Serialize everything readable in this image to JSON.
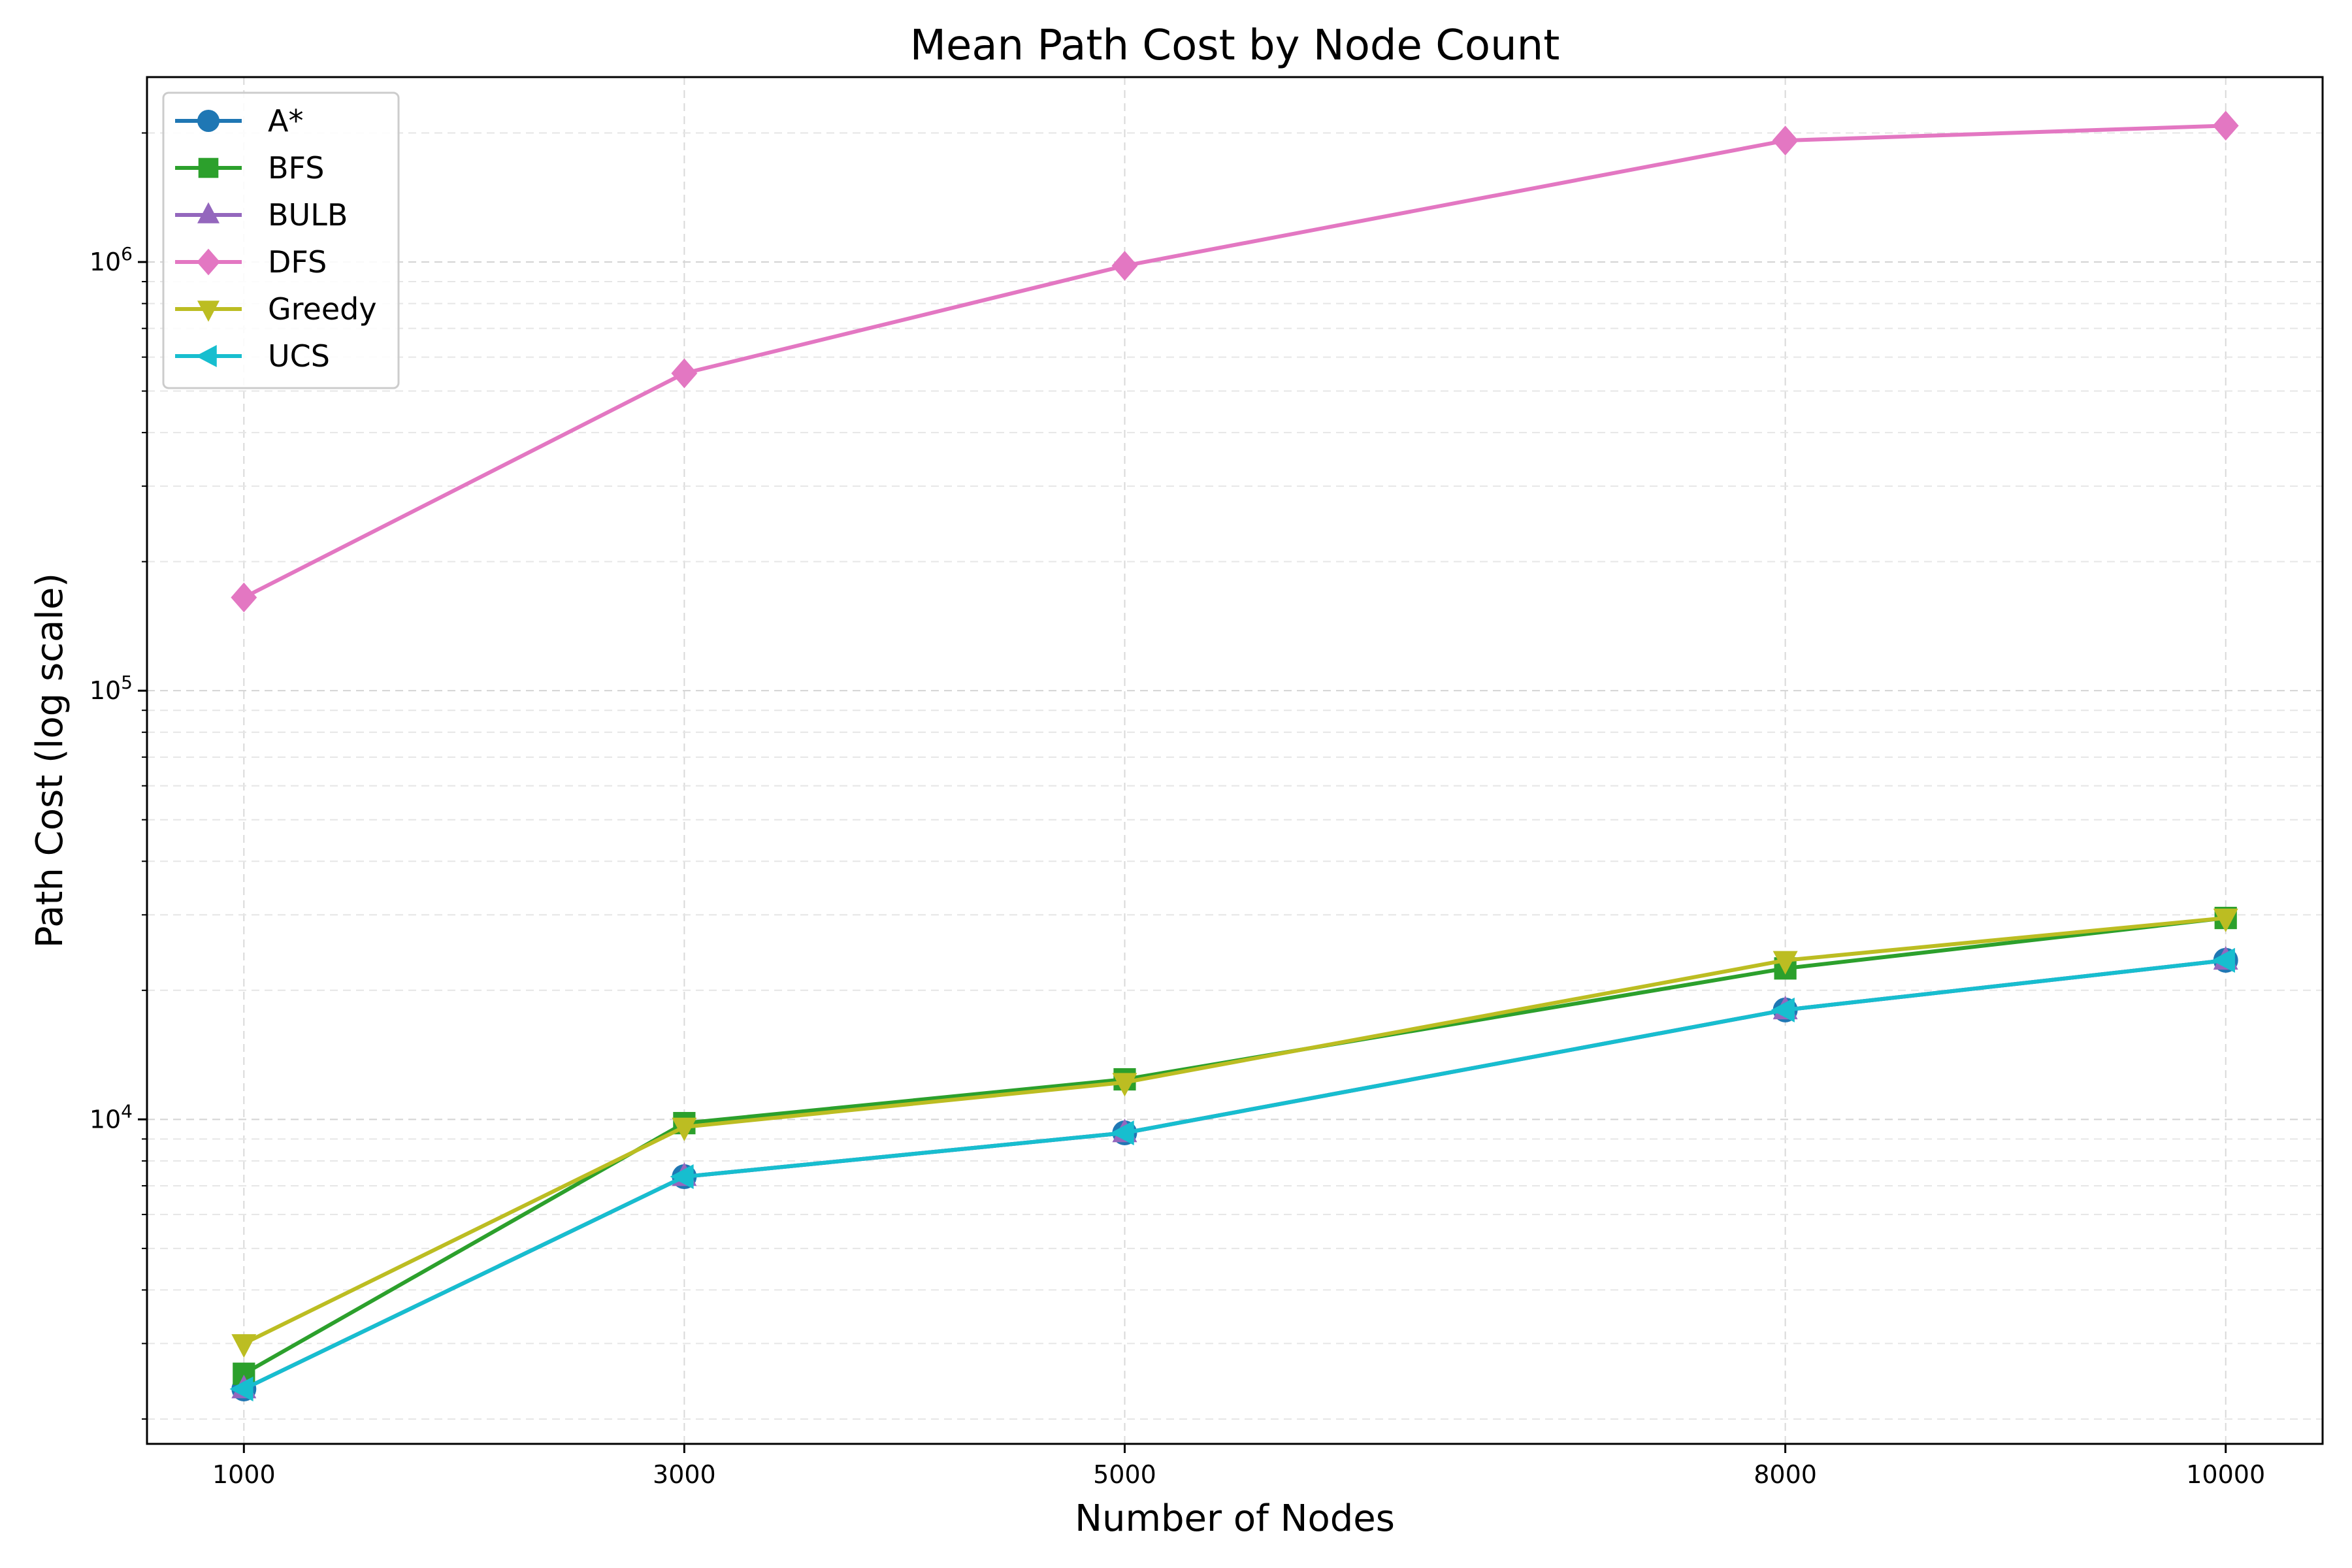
{
  "chart_data": {
    "type": "line",
    "title": "Mean Path Cost by Node Count",
    "xlabel": "Number of Nodes",
    "ylabel": "Path Cost (log scale)",
    "x": [
      1000,
      3000,
      5000,
      8000,
      10000
    ],
    "x_tick_labels": [
      "1000",
      "3000",
      "5000",
      "8000",
      "10000"
    ],
    "xlim": [
      560,
      10440
    ],
    "y_scale": "log",
    "ylim": [
      1750,
      2700000
    ],
    "y_ticks": [
      {
        "value": 10000,
        "base": "10",
        "exp": "4"
      },
      {
        "value": 100000,
        "base": "10",
        "exp": "5"
      },
      {
        "value": 1000000,
        "base": "10",
        "exp": "6"
      }
    ],
    "grid": true,
    "legend_position": "top-left",
    "series": [
      {
        "name": "A*",
        "color": "#1f77b4",
        "marker": "circle",
        "values": [
          2350,
          7350,
          9300,
          18000,
          23500
        ]
      },
      {
        "name": "BFS",
        "color": "#2ca02c",
        "marker": "square",
        "values": [
          2550,
          9800,
          12400,
          22500,
          29500
        ]
      },
      {
        "name": "BULB",
        "color": "#9467bd",
        "marker": "triangle-up",
        "values": [
          2350,
          7350,
          9300,
          18000,
          23500
        ]
      },
      {
        "name": "DFS",
        "color": "#e377c2",
        "marker": "diamond",
        "values": [
          165000,
          550000,
          980000,
          1920000,
          2080000
        ]
      },
      {
        "name": "Greedy",
        "color": "#bcbd22",
        "marker": "triangle-down",
        "values": [
          3000,
          9600,
          12200,
          23500,
          29500
        ]
      },
      {
        "name": "UCS",
        "color": "#17becf",
        "marker": "triangle-left",
        "values": [
          2350,
          7350,
          9300,
          18000,
          23500
        ]
      }
    ]
  }
}
